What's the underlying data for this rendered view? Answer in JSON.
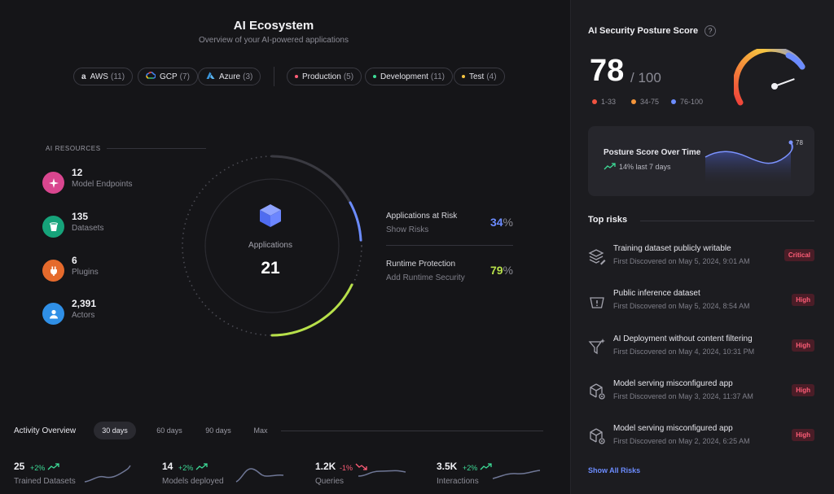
{
  "header": {
    "title": "AI Ecosystem",
    "subtitle": "Overview of your AI-powered applications"
  },
  "filters": {
    "clouds": [
      {
        "label": "AWS",
        "count": "(11)",
        "icon": "amazon-icon"
      },
      {
        "label": "GCP",
        "count": "(7)",
        "icon": "gcp-icon"
      },
      {
        "label": "Azure",
        "count": "(3)",
        "icon": "azure-icon"
      }
    ],
    "environments": [
      {
        "label": "Production",
        "count": "(5)",
        "color": "#ff5d77"
      },
      {
        "label": "Development",
        "count": "(11)",
        "color": "#3ddc97"
      },
      {
        "label": "Test",
        "count": "(4)",
        "color": "#f5c542"
      }
    ]
  },
  "resources": {
    "heading": "AI RESOURCES",
    "items": [
      {
        "value": "12",
        "label": "Model Endpoints",
        "color": "#d9468f",
        "icon": "sparkle-icon"
      },
      {
        "value": "135",
        "label": "Datasets",
        "color": "#16a37a",
        "icon": "bucket-icon"
      },
      {
        "value": "6",
        "label": "Plugins",
        "color": "#e56a2c",
        "icon": "plug-icon"
      },
      {
        "value": "2,391",
        "label": "Actors",
        "color": "#2f8fe6",
        "icon": "user-icon"
      }
    ]
  },
  "applications": {
    "label": "Applications",
    "value": "21"
  },
  "metrics": [
    {
      "title": "Applications at Risk",
      "action": "Show Risks",
      "value": "34",
      "unit": "%",
      "color": "#6c8cff"
    },
    {
      "title": "Runtime Protection",
      "action": "Add Runtime Security",
      "value": "79",
      "unit": "%",
      "color": "#b7e04a"
    }
  ],
  "activity": {
    "title": "Activity Overview",
    "tabs": [
      "30 days",
      "60 days",
      "90 days",
      "Max"
    ],
    "active_tab": "30 days",
    "stats": [
      {
        "value": "25",
        "change": "+2%",
        "direction": "up",
        "label": "Trained Datasets"
      },
      {
        "value": "14",
        "change": "+2%",
        "direction": "up",
        "label": "Models deployed"
      },
      {
        "value": "1.2K",
        "change": "-1%",
        "direction": "down",
        "label": "Queries"
      },
      {
        "value": "3.5K",
        "change": "+2%",
        "direction": "up",
        "label": "Interactions"
      }
    ]
  },
  "posture": {
    "title": "AI Security Posture Score",
    "help": "?",
    "score": "78",
    "max": "/ 100",
    "score_fraction": 0.78,
    "legend": [
      {
        "label": "1-33",
        "color": "#f05340"
      },
      {
        "label": "34-75",
        "color": "#f5953a"
      },
      {
        "label": "76-100",
        "color": "#6c8cff"
      }
    ],
    "trend": {
      "title": "Posture Score Over Time",
      "change": "14% last 7 days",
      "end_value": "78"
    }
  },
  "risks": {
    "title": "Top risks",
    "items": [
      {
        "name": "Training dataset publicly writable",
        "date": "First Discovered on May 5, 2024, 9:01 AM",
        "severity": "Critical",
        "icon": "layers-edit-icon"
      },
      {
        "name": "Public inference dataset",
        "date": "First Discovered on May 5, 2024, 8:54 AM",
        "severity": "High",
        "icon": "bucket-warning-icon"
      },
      {
        "name": "AI Deployment without content filtering",
        "date": "First Discovered on May 4, 2024, 10:31 PM",
        "severity": "High",
        "icon": "filter-sparkle-icon"
      },
      {
        "name": "Model serving misconfigured app",
        "date": "First Discovered on May 3, 2024, 11:37 AM",
        "severity": "High",
        "icon": "cube-gear-icon"
      },
      {
        "name": "Model serving misconfigured app",
        "date": "First Discovered on May 2, 2024, 6:25 AM",
        "severity": "High",
        "icon": "cube-gear-icon"
      }
    ],
    "show_all": "Show All Risks"
  }
}
